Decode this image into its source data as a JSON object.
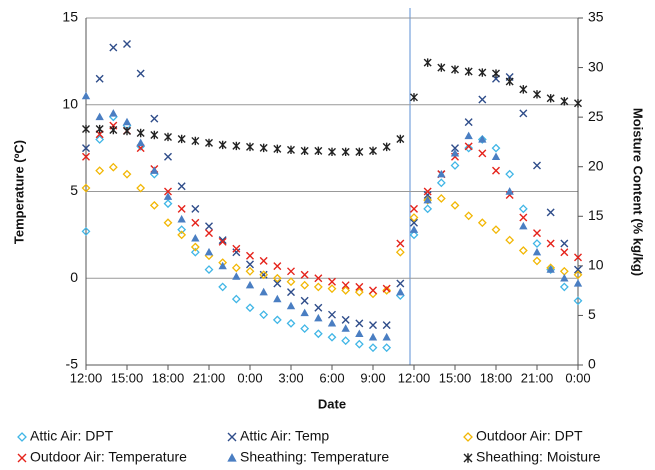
{
  "chart_data": {
    "type": "scatter",
    "x_label": "Date",
    "y_label": "Temperature (ºC)",
    "y2_label": "Moisture Content (% kg/kg)",
    "x": [
      0,
      1,
      2,
      3,
      4,
      5,
      6,
      7,
      8,
      9,
      10,
      11,
      12,
      13,
      14,
      15,
      16,
      17,
      18,
      19,
      20,
      21,
      22,
      23,
      24,
      25,
      26,
      27,
      28,
      29,
      30,
      31,
      32,
      33,
      34,
      35,
      36
    ],
    "xlim": [
      0,
      36
    ],
    "xticks": [
      {
        "value": 0,
        "label": "12:00"
      },
      {
        "value": 3,
        "label": "15:00"
      },
      {
        "value": 6,
        "label": "18:00"
      },
      {
        "value": 9,
        "label": "21:00"
      },
      {
        "value": 12,
        "label": "0:00"
      },
      {
        "value": 15,
        "label": "3:00"
      },
      {
        "value": 18,
        "label": "6:00"
      },
      {
        "value": 21,
        "label": "9:00"
      },
      {
        "value": 24,
        "label": "12:00"
      },
      {
        "value": 27,
        "label": "15:00"
      },
      {
        "value": 30,
        "label": "18:00"
      },
      {
        "value": 33,
        "label": "21:00"
      },
      {
        "value": 36,
        "label": "0:00"
      }
    ],
    "ylim": [
      -5,
      15
    ],
    "yticks": [
      -5,
      0,
      5,
      10,
      15
    ],
    "y2lim": [
      0,
      35
    ],
    "y2ticks": [
      0,
      5,
      10,
      15,
      20,
      25,
      30,
      35
    ],
    "grid": true,
    "series": [
      {
        "name": "Attic Air: DPT",
        "color": "#41b6e6",
        "marker": "diamond-open",
        "values": [
          2.7,
          8.0,
          9.3,
          8.8,
          7.6,
          6.0,
          4.3,
          2.8,
          1.5,
          0.5,
          -0.5,
          -1.2,
          -1.7,
          -2.1,
          -2.4,
          -2.6,
          -2.9,
          -3.2,
          -3.4,
          -3.6,
          -3.8,
          -4.0,
          -4.0,
          -1.0,
          2.5,
          4.0,
          5.5,
          6.5,
          7.5,
          8.0,
          7.5,
          6.0,
          4.0,
          2.0,
          0.5,
          -0.5,
          -1.3
        ]
      },
      {
        "name": "Attic Air: Temp",
        "color": "#2f4d8a",
        "marker": "x",
        "values": [
          7.5,
          11.5,
          13.3,
          13.5,
          11.8,
          9.2,
          7.0,
          5.3,
          4.0,
          3.0,
          2.2,
          1.5,
          0.8,
          0.2,
          -0.3,
          -0.8,
          -1.3,
          -1.7,
          -2.1,
          -2.4,
          -2.6,
          -2.7,
          -2.7,
          -0.3,
          3.2,
          4.8,
          6.0,
          7.5,
          9.0,
          10.3,
          11.5,
          11.6,
          9.5,
          6.5,
          3.8,
          2.0,
          0.5
        ]
      },
      {
        "name": "Outdoor Air: DPT",
        "color": "#f2b705",
        "marker": "diamond-open",
        "values": [
          5.2,
          6.2,
          6.4,
          6.0,
          5.2,
          4.2,
          3.2,
          2.5,
          1.8,
          1.3,
          0.9,
          0.6,
          0.4,
          0.2,
          0.0,
          -0.2,
          -0.4,
          -0.5,
          -0.6,
          -0.7,
          -0.8,
          -0.9,
          -0.7,
          1.5,
          3.5,
          4.5,
          4.6,
          4.2,
          3.6,
          3.2,
          2.8,
          2.2,
          1.6,
          1.0,
          0.6,
          0.4,
          0.2
        ]
      },
      {
        "name": "Outdoor Air: Temperature",
        "color": "#e5231b",
        "marker": "x",
        "values": [
          7.0,
          8.3,
          8.8,
          8.5,
          7.5,
          6.3,
          5.0,
          4.0,
          3.2,
          2.6,
          2.1,
          1.7,
          1.3,
          1.0,
          0.7,
          0.4,
          0.2,
          0.0,
          -0.2,
          -0.4,
          -0.5,
          -0.7,
          -0.6,
          2.0,
          4.0,
          5.0,
          6.0,
          7.0,
          7.6,
          7.2,
          6.2,
          4.8,
          3.5,
          2.6,
          2.0,
          1.5,
          1.2
        ]
      },
      {
        "name": "Sheathing: Temperature",
        "color": "#4a7ec2",
        "marker": "triangle",
        "values": [
          10.5,
          9.3,
          9.5,
          9.0,
          7.8,
          6.2,
          4.7,
          3.4,
          2.3,
          1.5,
          0.7,
          0.1,
          -0.4,
          -0.8,
          -1.2,
          -1.6,
          -2.0,
          -2.3,
          -2.6,
          -2.9,
          -3.2,
          -3.4,
          -3.4,
          -0.8,
          2.8,
          4.5,
          6.0,
          7.2,
          8.2,
          8.0,
          7.0,
          5.0,
          3.0,
          1.5,
          0.5,
          0.0,
          -0.3
        ]
      },
      {
        "name": "Sheathing: Moisture",
        "color": "#222222",
        "marker": "asterisk",
        "axis": "y2",
        "values": [
          23.8,
          23.8,
          23.7,
          23.6,
          23.4,
          23.2,
          23.0,
          22.8,
          22.6,
          22.4,
          22.2,
          22.1,
          22.0,
          21.9,
          21.8,
          21.7,
          21.6,
          21.6,
          21.5,
          21.5,
          21.5,
          21.6,
          22.0,
          22.8,
          27.0,
          30.5,
          30.0,
          29.8,
          29.6,
          29.5,
          29.4,
          28.6,
          27.8,
          27.3,
          26.9,
          26.6,
          26.4
        ]
      }
    ]
  }
}
